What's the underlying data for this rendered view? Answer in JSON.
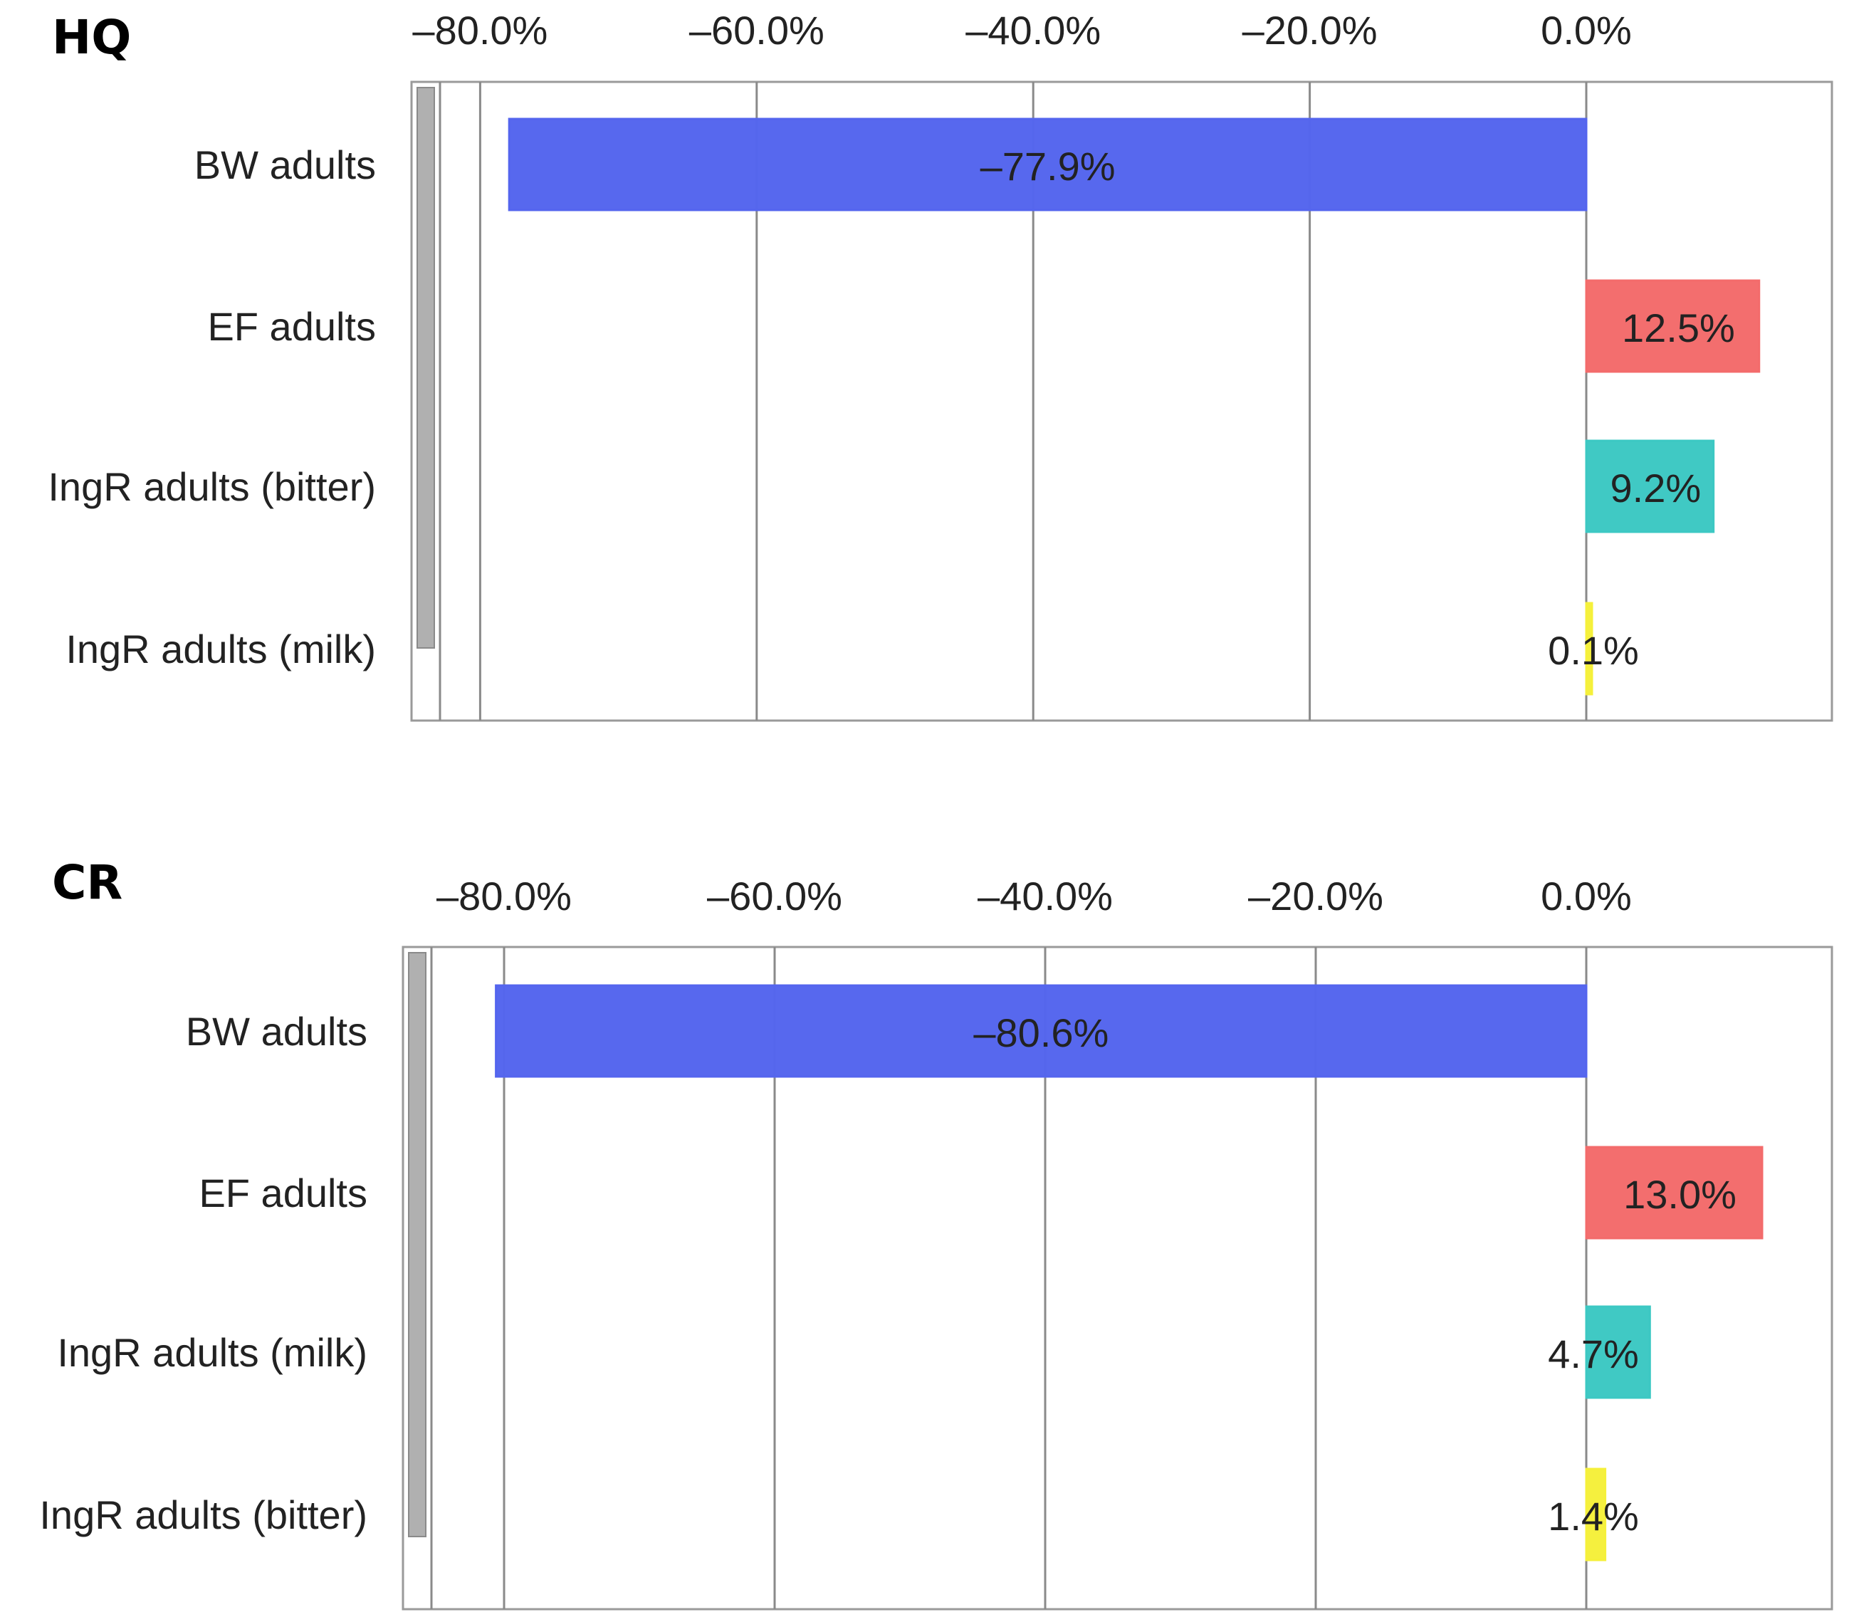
{
  "chart_data": [
    {
      "type": "bar",
      "orientation": "horizontal",
      "title": "HQ",
      "categories": [
        "BW adults",
        "EF adults",
        "IngR adults (bitter)",
        "IngR adults (milk)"
      ],
      "values": [
        -77.9,
        12.5,
        9.2,
        0.1
      ],
      "value_labels": [
        "–77.9%",
        "12.5%",
        "9.2%",
        "0.1%"
      ],
      "colors": [
        "#5465ee",
        "#f36b6b",
        "#3cc8c3",
        "#f5f03a"
      ],
      "xticks": [
        -80,
        -60,
        -40,
        -20,
        0
      ],
      "xtick_labels": [
        "–80.0%",
        "–60.0%",
        "–40.0%",
        "–20.0%",
        "0.0%"
      ],
      "xlim": [
        -85,
        18
      ],
      "grid": true
    },
    {
      "type": "bar",
      "orientation": "horizontal",
      "title": "CR",
      "categories": [
        "BW adults",
        "EF adults",
        "IngR adults (milk)",
        "IngR adults (bitter)"
      ],
      "values": [
        -80.6,
        13.0,
        4.7,
        1.4
      ],
      "value_labels": [
        "–80.6%",
        "13.0%",
        "4.7%",
        "1.4%"
      ],
      "colors": [
        "#5465ee",
        "#f36b6b",
        "#3cc8c3",
        "#f5f03a"
      ],
      "xticks": [
        -80,
        -60,
        -40,
        -20,
        0
      ],
      "xtick_labels": [
        "–80.0%",
        "–60.0%",
        "–40.0%",
        "–20.0%",
        "0.0%"
      ],
      "xlim": [
        -88,
        18
      ],
      "grid": true
    }
  ]
}
